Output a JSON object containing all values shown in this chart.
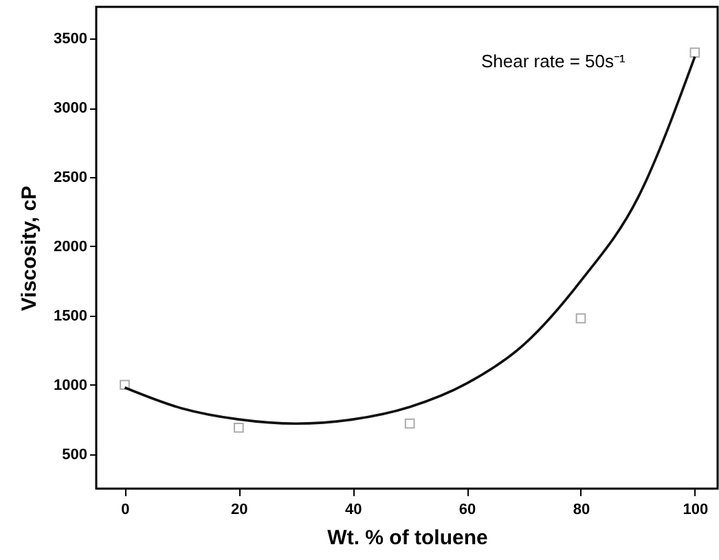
{
  "chart_data": {
    "type": "scatter",
    "xlabel": "Wt. % of toluene",
    "ylabel": "Viscosity, cP",
    "annotations": [
      "Shear rate = 50s⁻¹"
    ],
    "xlim": [
      -5,
      104
    ],
    "ylim": [
      250,
      3730
    ],
    "xticks": [
      0,
      20,
      40,
      60,
      80,
      100
    ],
    "yticks": [
      500,
      1000,
      1500,
      2000,
      2500,
      3000,
      3500
    ],
    "grid": false,
    "series": [
      {
        "type": "scatter",
        "marker": "square",
        "color": "#888888",
        "x": [
          0,
          20,
          50,
          80,
          100
        ],
        "values": [
          1000,
          690,
          720,
          1480,
          3400
        ]
      },
      {
        "type": "line",
        "line_style": "solid",
        "color": "#111111",
        "x": [
          0,
          10,
          20,
          30,
          40,
          50,
          60,
          70,
          80,
          90,
          100
        ],
        "values": [
          980,
          830,
          750,
          720,
          750,
          840,
          1010,
          1290,
          1750,
          2350,
          3370
        ]
      }
    ]
  }
}
